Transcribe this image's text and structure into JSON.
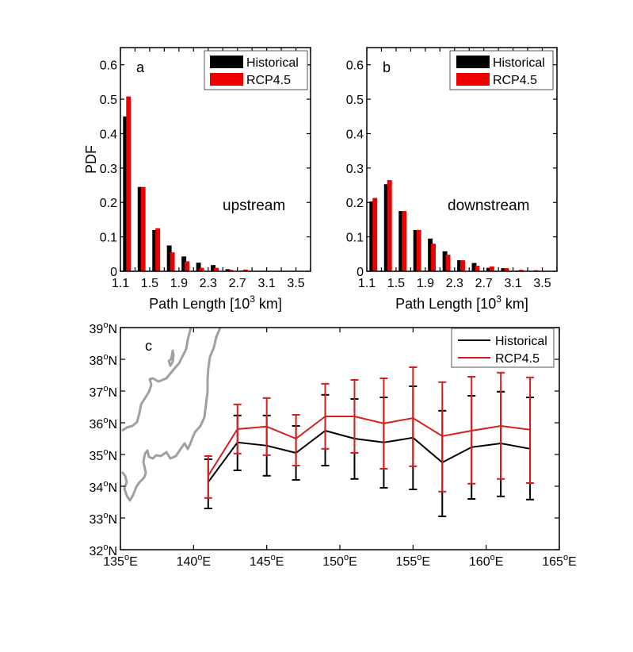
{
  "chart_data": [
    {
      "id": "a",
      "type": "bar",
      "panel_label": "a",
      "annotation": "upstream",
      "xlabel_main": "Path Length [10",
      "xlabel_sup": "3",
      "xlabel_tail": " km]",
      "ylabel": "PDF",
      "ylim": [
        0,
        0.65
      ],
      "yticks": [
        "0",
        "0.1",
        "0.2",
        "0.3",
        "0.4",
        "0.5",
        "0.6"
      ],
      "ytick_values": [
        0,
        0.1,
        0.2,
        0.3,
        0.4,
        0.5,
        0.6
      ],
      "xlim": [
        1.1,
        3.7
      ],
      "xticks": [
        "1.1",
        "1.5",
        "1.9",
        "2.3",
        "2.7",
        "3.1",
        "3.5"
      ],
      "xtick_values": [
        1.1,
        1.5,
        1.9,
        2.3,
        2.7,
        3.1,
        3.5
      ],
      "bin_width": 0.2,
      "bin_centers": [
        1.2,
        1.4,
        1.6,
        1.8,
        2.0,
        2.2,
        2.4,
        2.6,
        2.8,
        3.0
      ],
      "legend_position": "top-right",
      "series": [
        {
          "name": "Historical",
          "color": "#000000",
          "values": [
            0.45,
            0.245,
            0.12,
            0.075,
            0.043,
            0.025,
            0.018,
            0.006,
            0.002,
            0.001
          ]
        },
        {
          "name": "RCP4.5",
          "color": "#ee0000",
          "values": [
            0.508,
            0.245,
            0.125,
            0.055,
            0.029,
            0.01,
            0.01,
            0.004,
            0.005,
            0.0
          ]
        }
      ]
    },
    {
      "id": "b",
      "type": "bar",
      "panel_label": "b",
      "annotation": "downstream",
      "xlabel_main": "Path Length [10",
      "xlabel_sup": "3",
      "xlabel_tail": " km]",
      "ylabel": "",
      "ylim": [
        0,
        0.65
      ],
      "yticks": [
        "0",
        "0.1",
        "0.2",
        "0.3",
        "0.4",
        "0.5",
        "0.6"
      ],
      "ytick_values": [
        0,
        0.1,
        0.2,
        0.3,
        0.4,
        0.5,
        0.6
      ],
      "xlim": [
        1.1,
        3.7
      ],
      "xticks": [
        "1.1",
        "1.5",
        "1.9",
        "2.3",
        "2.7",
        "3.1",
        "3.5"
      ],
      "xtick_values": [
        1.1,
        1.5,
        1.9,
        2.3,
        2.7,
        3.1,
        3.5
      ],
      "bin_width": 0.2,
      "bin_centers": [
        1.2,
        1.4,
        1.6,
        1.8,
        2.0,
        2.2,
        2.4,
        2.6,
        2.8,
        3.0,
        3.2,
        3.4
      ],
      "legend_position": "top-right",
      "series": [
        {
          "name": "Historical",
          "color": "#000000",
          "values": [
            0.203,
            0.253,
            0.175,
            0.12,
            0.095,
            0.058,
            0.032,
            0.024,
            0.01,
            0.009,
            0.002,
            0.0
          ]
        },
        {
          "name": "RCP4.5",
          "color": "#ee0000",
          "values": [
            0.213,
            0.265,
            0.175,
            0.12,
            0.08,
            0.048,
            0.032,
            0.016,
            0.014,
            0.009,
            0.004,
            0.003
          ]
        }
      ]
    },
    {
      "id": "c",
      "type": "line",
      "panel_label": "c",
      "xlim": [
        135,
        165
      ],
      "ylim": [
        32,
        39
      ],
      "xticks": [
        "135",
        "140",
        "145",
        "150",
        "155",
        "160",
        "165"
      ],
      "xtick_values": [
        135,
        140,
        145,
        150,
        155,
        160,
        165
      ],
      "xtick_suffix": "E",
      "yticks": [
        "32",
        "33",
        "34",
        "35",
        "36",
        "37",
        "38",
        "39"
      ],
      "ytick_values": [
        32,
        33,
        34,
        35,
        36,
        37,
        38,
        39
      ],
      "ytick_suffix": "N",
      "degree_symbol": "o",
      "legend_position": "top-right",
      "coastline_color": "#a0a0a0",
      "x": [
        141,
        143,
        145,
        147,
        149,
        151,
        153,
        155,
        157,
        159,
        161,
        163
      ],
      "series": [
        {
          "name": "Historical",
          "color": "#000000",
          "mean": [
            34.13,
            35.38,
            35.28,
            35.05,
            35.75,
            35.5,
            35.38,
            35.53,
            34.75,
            35.23,
            35.35,
            35.18
          ],
          "upper": [
            34.85,
            36.23,
            36.23,
            35.9,
            36.88,
            36.75,
            36.8,
            37.15,
            36.38,
            36.85,
            36.98,
            36.8
          ],
          "lower": [
            33.3,
            34.5,
            34.33,
            34.2,
            34.65,
            34.23,
            33.95,
            33.9,
            33.05,
            33.6,
            33.68,
            33.58
          ]
        },
        {
          "name": "RCP4.5",
          "color": "#d42020",
          "mean": [
            34.33,
            35.8,
            35.88,
            35.5,
            36.2,
            36.2,
            35.98,
            36.15,
            35.58,
            35.75,
            35.9,
            35.78
          ],
          "upper": [
            34.95,
            36.58,
            36.78,
            36.25,
            37.23,
            37.35,
            37.4,
            37.75,
            37.28,
            37.45,
            37.58,
            37.43
          ],
          "lower": [
            33.63,
            35.03,
            34.98,
            34.65,
            35.18,
            35.05,
            34.55,
            34.63,
            33.83,
            34.08,
            34.23,
            34.1
          ]
        }
      ]
    }
  ]
}
